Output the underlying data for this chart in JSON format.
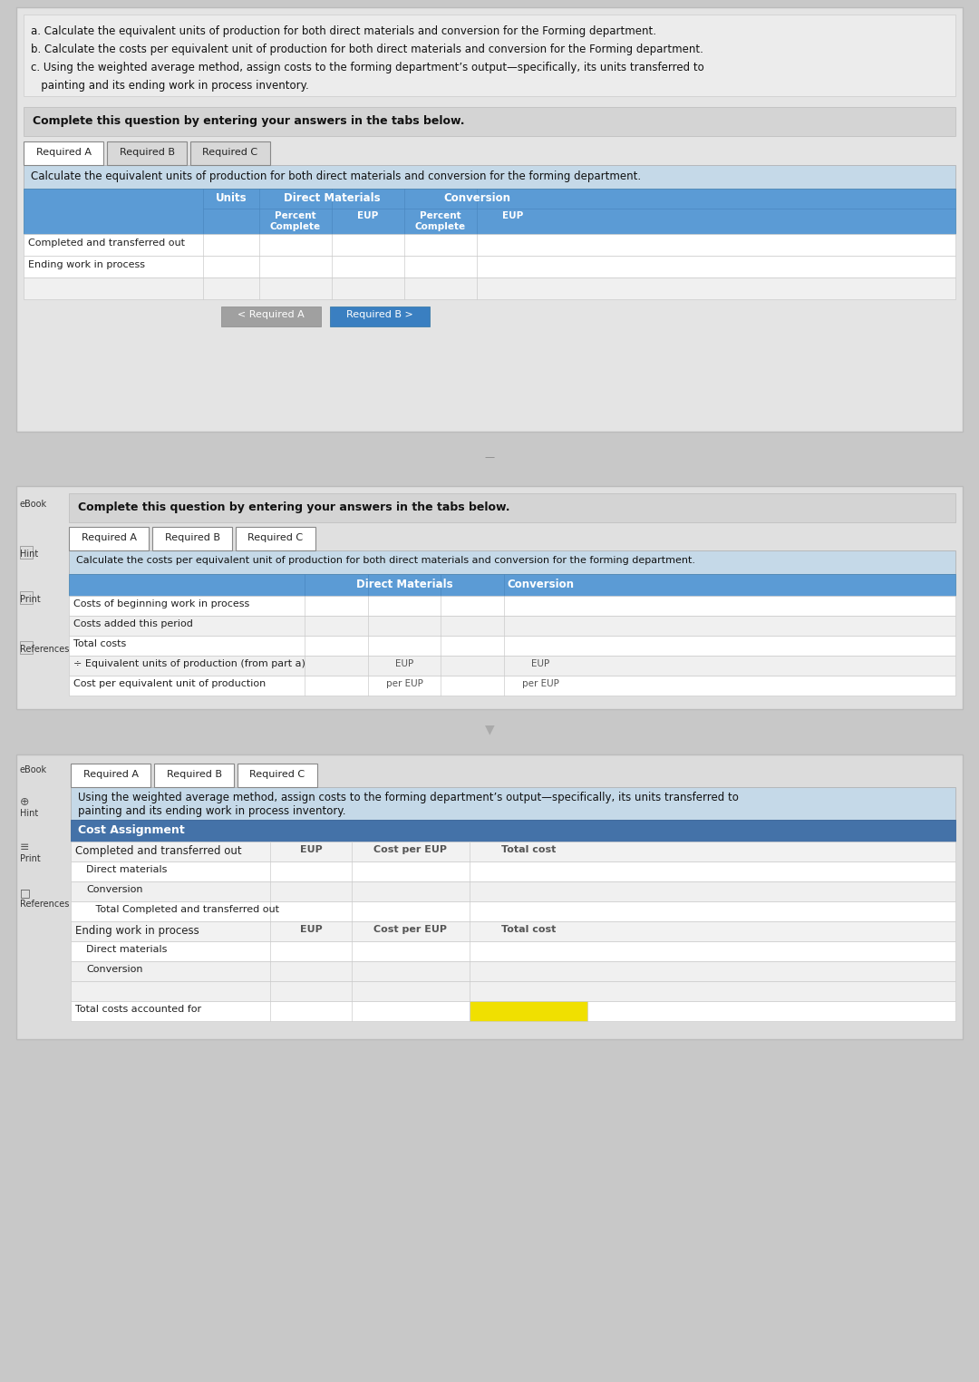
{
  "bg_color": "#c8c8c8",
  "panel1_bg": "#e4e4e4",
  "panel2_bg": "#e0e0e0",
  "panel3_bg": "#dcdcdc",
  "inner_bg": "#f0f0f0",
  "white": "#ffffff",
  "blue_header": "#5b9bd5",
  "blue_dark": "#3a6ea5",
  "blue_desc": "#c5d9e8",
  "blue_btn": "#3a7fc1",
  "gray_btn": "#a0a0a0",
  "yellow": "#f0e000",
  "tab_active_bg": "#ffffff",
  "tab_inactive_bg": "#d8d8d8",
  "border_color": "#aaaaaa",
  "row_white": "#ffffff",
  "row_gray": "#f0f0f0",
  "text_dark": "#222222",
  "text_mid": "#555555",
  "text_light": "#888888",
  "instr_lines": [
    "a. Calculate the equivalent units of production for both direct materials and conversion for the Forming department.",
    "b. Calculate the costs per equivalent unit of production for both direct materials and conversion for the Forming department.",
    "c. Using the weighted average method, assign costs to the forming department’s output—specifically, its units transferred to",
    "   painting and its ending work in process inventory."
  ],
  "req_a_rows": [
    "Completed and transferred out",
    "Ending work in process"
  ],
  "req_b_rows": [
    "Costs of beginning work in process",
    "Costs added this period",
    "Total costs",
    "÷ Equivalent units of production (from part a)",
    "Cost per equivalent unit of production"
  ],
  "req_c_rows_header": "Cost Assignment",
  "req_c_row1_label": "Completed and transferred out",
  "req_c_sub1": [
    "Direct materials",
    "Conversion",
    "   Total Completed and transferred out"
  ],
  "req_c_row2_label": "Ending work in process",
  "req_c_sub2": [
    "Direct materials",
    "Conversion"
  ],
  "req_c_total": "Total costs accounted for"
}
